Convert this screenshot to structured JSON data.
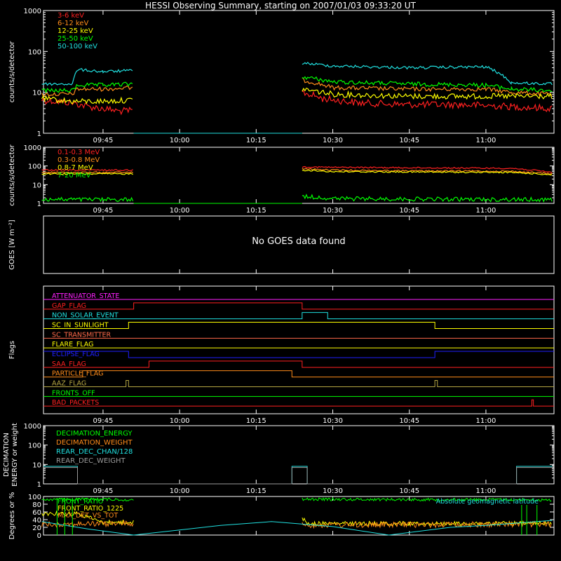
{
  "title": "HESSI Observing Summary, starting on 2007/01/03 09:33:20 UT",
  "time_ticks": [
    "09:45",
    "10:00",
    "10:15",
    "10:30",
    "10:45",
    "11:00"
  ],
  "colors": {
    "red": "#ff2020",
    "orange": "#ff8c1a",
    "yellow": "#ffff00",
    "green": "#00ff00",
    "cyan": "#20e0e0",
    "magenta": "#ff20ff",
    "blue": "#2020ff",
    "salmon": "#ff6a4a",
    "olive": "#b5a642",
    "gray": "#9a9a9a",
    "white": "#ffffff"
  },
  "chart_data": [
    {
      "type": "line",
      "name": "low-energy-rates",
      "ylabel": "counts/s/detector",
      "yscale": "log",
      "ylim": [
        1,
        1000
      ],
      "yticks": [
        "1",
        "10",
        "100",
        "1000"
      ],
      "xlim": [
        "09:33:20",
        "11:13:20"
      ],
      "gaps": [
        [
          "09:51",
          "10:24"
        ]
      ],
      "series": [
        {
          "name": "3-6 keV",
          "color": "red",
          "segments": [
            {
              "x": [
                "09:33",
                "09:36",
                "09:39",
                "09:42",
                "09:45",
                "09:48",
                "09:51"
              ],
              "y": [
                6.5,
                6,
                5.5,
                4.5,
                4,
                3.5,
                3.5
              ]
            },
            {
              "x": [
                "10:24",
                "10:28",
                "10:35",
                "10:45",
                "10:55",
                "11:05",
                "11:13"
              ],
              "y": [
                10,
                7,
                5.5,
                5,
                5,
                4.5,
                4
              ]
            }
          ]
        },
        {
          "name": "6-12 keV",
          "color": "orange",
          "segments": [
            {
              "x": [
                "09:33",
                "09:39",
                "09:40",
                "09:45",
                "09:51"
              ],
              "y": [
                9,
                9,
                12,
                12,
                13
              ]
            },
            {
              "x": [
                "10:24",
                "10:30",
                "10:45",
                "11:00",
                "11:05",
                "11:13"
              ],
              "y": [
                20,
                13,
                12,
                12,
                10,
                9
              ]
            }
          ]
        },
        {
          "name": "12-25 keV",
          "color": "yellow",
          "segments": [
            {
              "x": [
                "09:33",
                "09:39",
                "09:45",
                "09:51"
              ],
              "y": [
                7,
                6,
                6,
                6.5
              ]
            },
            {
              "x": [
                "10:24",
                "10:30",
                "10:45",
                "11:00",
                "11:13"
              ],
              "y": [
                12,
                9,
                8,
                8,
                8
              ]
            }
          ]
        },
        {
          "name": "25-50 keV",
          "color": "green",
          "segments": [
            {
              "x": [
                "09:33",
                "09:39",
                "09:40",
                "09:45",
                "09:51"
              ],
              "y": [
                11,
                11,
                15,
                15,
                16
              ]
            },
            {
              "x": [
                "10:24",
                "10:30",
                "10:45",
                "11:00",
                "11:05",
                "11:13"
              ],
              "y": [
                24,
                18,
                16,
                15,
                12,
                11
              ]
            }
          ]
        },
        {
          "name": "50-100 keV",
          "color": "cyan",
          "segments": [
            {
              "x": [
                "09:33",
                "09:39",
                "09:40",
                "09:45",
                "09:51"
              ],
              "y": [
                16,
                16,
                36,
                32,
                34
              ]
            },
            {
              "x": [
                "10:24",
                "10:30",
                "10:45",
                "11:00",
                "11:05",
                "11:13"
              ],
              "y": [
                52,
                44,
                40,
                42,
                17,
                16
              ]
            }
          ]
        }
      ]
    },
    {
      "type": "line",
      "name": "high-energy-rates",
      "ylabel": "counts/s/detector",
      "yscale": "log",
      "ylim": [
        1,
        1000
      ],
      "yticks": [
        "1",
        "10",
        "100",
        "1000"
      ],
      "xlim": [
        "09:33:20",
        "11:13:20"
      ],
      "series": [
        {
          "name": "0.1-0.3 MeV",
          "color": "red",
          "segments": [
            {
              "x": [
                "09:33",
                "09:51"
              ],
              "y": [
                60,
                60
              ]
            },
            {
              "x": [
                "10:24",
                "10:30",
                "10:45",
                "11:05",
                "11:13"
              ],
              "y": [
                90,
                85,
                80,
                75,
                45
              ]
            }
          ]
        },
        {
          "name": "0.3-0.8 MeV",
          "color": "orange",
          "segments": [
            {
              "x": [
                "09:33",
                "09:51"
              ],
              "y": [
                45,
                45
              ]
            },
            {
              "x": [
                "10:24",
                "10:30",
                "10:45",
                "11:05",
                "11:13"
              ],
              "y": [
                70,
                60,
                55,
                52,
                38
              ]
            }
          ]
        },
        {
          "name": "0.8-7 MeV",
          "color": "yellow",
          "segments": [
            {
              "x": [
                "09:33",
                "09:51"
              ],
              "y": [
                38,
                38
              ]
            },
            {
              "x": [
                "10:24",
                "10:30",
                "10:45",
                "11:05",
                "11:13"
              ],
              "y": [
                60,
                50,
                48,
                45,
                34
              ]
            }
          ]
        },
        {
          "name": "7-20 MeV",
          "color": "green",
          "segments": [
            {
              "x": [
                "09:33",
                "09:51"
              ],
              "y": [
                1.6,
                1.6
              ]
            },
            {
              "x": [
                "10:24",
                "10:30",
                "10:45",
                "11:05",
                "11:13"
              ],
              "y": [
                2.4,
                1.8,
                1.7,
                1.6,
                1.6
              ]
            }
          ]
        }
      ]
    },
    {
      "type": "line",
      "name": "goes",
      "ylabel": "GOES [W m⁻²]",
      "message": "No GOES data found",
      "series": []
    },
    {
      "type": "line",
      "name": "flags",
      "ylabel": "Flags",
      "xlim": [
        "09:33:20",
        "11:13:20"
      ],
      "series": [
        {
          "name": "ATTENUATOR_STATE",
          "color": "magenta",
          "steps": []
        },
        {
          "name": "GAP_FLAG",
          "color": "red",
          "steps": [
            [
              "09:33",
              0
            ],
            [
              "09:51",
              1
            ],
            [
              "10:24",
              0
            ]
          ]
        },
        {
          "name": "NON_SOLAR_EVENT",
          "color": "cyan",
          "steps": [
            [
              "09:33",
              0
            ],
            [
              "10:24",
              1
            ],
            [
              "10:29",
              0
            ]
          ]
        },
        {
          "name": "SC_IN_SUNLIGHT",
          "color": "yellow",
          "steps": [
            [
              "09:33",
              0
            ],
            [
              "09:50",
              1
            ],
            [
              "10:50",
              0
            ]
          ]
        },
        {
          "name": "SC_TRANSMITTER",
          "color": "salmon",
          "steps": []
        },
        {
          "name": "FLARE_FLAG",
          "color": "yellow",
          "steps": []
        },
        {
          "name": "ECLIPSE_FLAG",
          "color": "blue",
          "steps": [
            [
              "09:33",
              1
            ],
            [
              "09:50",
              0
            ],
            [
              "10:50",
              1
            ]
          ]
        },
        {
          "name": "SAA_FLAG",
          "color": "red",
          "steps": [
            [
              "09:33",
              0
            ],
            [
              "09:54",
              1
            ],
            [
              "10:24",
              0
            ]
          ]
        },
        {
          "name": "PARTICLE_FLAG",
          "color": "orange",
          "steps": [
            [
              "09:33",
              0
            ],
            [
              "09:41",
              1
            ],
            [
              "10:22",
              0
            ]
          ]
        },
        {
          "name": "AAZ_FLAG",
          "color": "olive",
          "steps": [
            [
              "09:33",
              0
            ],
            [
              "09:49.5",
              1
            ],
            [
              "09:50",
              0
            ],
            [
              "10:50",
              1
            ],
            [
              "10:50.5",
              0
            ]
          ]
        },
        {
          "name": "FRONTS_OFF",
          "color": "green",
          "steps": []
        },
        {
          "name": "BAD_PACKETS",
          "color": "red",
          "steps": [
            [
              "09:33",
              0
            ],
            [
              "11:09",
              1
            ],
            [
              "11:09.3",
              0
            ]
          ]
        }
      ]
    },
    {
      "type": "line",
      "name": "decimation",
      "ylabel": "DECIMATION ENERGY or weight",
      "yscale": "log",
      "ylim": [
        1,
        1000
      ],
      "yticks": [
        "1",
        "10",
        "100",
        "1000"
      ],
      "xlim": [
        "09:33:20",
        "11:13:20"
      ],
      "series": [
        {
          "name": "DECIMATION_ENERGY",
          "color": "green",
          "segments": []
        },
        {
          "name": "DECIMATION_WEIGHT",
          "color": "orange",
          "segments": []
        },
        {
          "name": "REAR_DEC_CHAN/128",
          "color": "cyan",
          "segments": [
            {
              "x": [
                "09:33",
                "09:40",
                "09:40",
                "10:22",
                "10:22",
                "10:25",
                "10:25",
                "11:06",
                "11:06",
                "11:13"
              ],
              "y": [
                8,
                8,
                1,
                1,
                8,
                8,
                1,
                1,
                8,
                8
              ]
            }
          ]
        },
        {
          "name": "REAR_DEC_WEIGHT",
          "color": "gray",
          "segments": [
            {
              "x": [
                "09:33",
                "09:40",
                "09:40",
                "10:22",
                "10:22",
                "10:25",
                "10:25",
                "11:06",
                "11:06",
                "11:13"
              ],
              "y": [
                7,
                7,
                1,
                1,
                7,
                7,
                1,
                1,
                7,
                7
              ]
            }
          ]
        }
      ]
    },
    {
      "type": "line",
      "name": "ratios",
      "ylabel": "Degrees or %",
      "ylim": [
        0,
        100
      ],
      "yticks": [
        "0",
        "20",
        "40",
        "60",
        "80",
        "100"
      ],
      "xlim": [
        "09:33:20",
        "11:13:20"
      ],
      "annotation": "Absolute geomagnetic latitude",
      "series": [
        {
          "name": "FRONT_RATIO",
          "color": "green",
          "segments": [
            {
              "x": [
                "09:33",
                "09:45",
                "09:51"
              ],
              "y": [
                92,
                93,
                91
              ]
            },
            {
              "x": [
                "10:24",
                "10:45",
                "11:05",
                "11:13"
              ],
              "y": [
                93,
                92,
                92,
                90
              ]
            }
          ]
        },
        {
          "name": "FRONT_RATIO_1225",
          "color": "yellow",
          "segments": [
            {
              "x": [
                "09:33",
                "09:40",
                "09:45",
                "09:51"
              ],
              "y": [
                56,
                56,
                33,
                33
              ]
            },
            {
              "x": [
                "10:24",
                "10:25",
                "10:45",
                "11:05",
                "11:13"
              ],
              "y": [
                45,
                30,
                30,
                30,
                30
              ]
            }
          ]
        },
        {
          "name": "MAX_DET_VS_TOT",
          "color": "orange",
          "segments": [
            {
              "x": [
                "09:33",
                "09:51"
              ],
              "y": [
                28,
                30
              ]
            },
            {
              "x": [
                "10:24",
                "10:45",
                "11:13"
              ],
              "y": [
                26,
                27,
                28
              ]
            }
          ]
        },
        {
          "name": "Absolute geomagnetic latitude",
          "color": "cyan",
          "segments": [
            {
              "x": [
                "09:33",
                "09:42",
                "09:51",
                "10:08",
                "10:18",
                "10:30",
                "10:41",
                "10:53",
                "11:00",
                "11:13"
              ],
              "y": [
                35,
                16,
                0,
                25,
                35,
                22,
                0,
                20,
                25,
                38
              ]
            }
          ]
        }
      ]
    }
  ]
}
